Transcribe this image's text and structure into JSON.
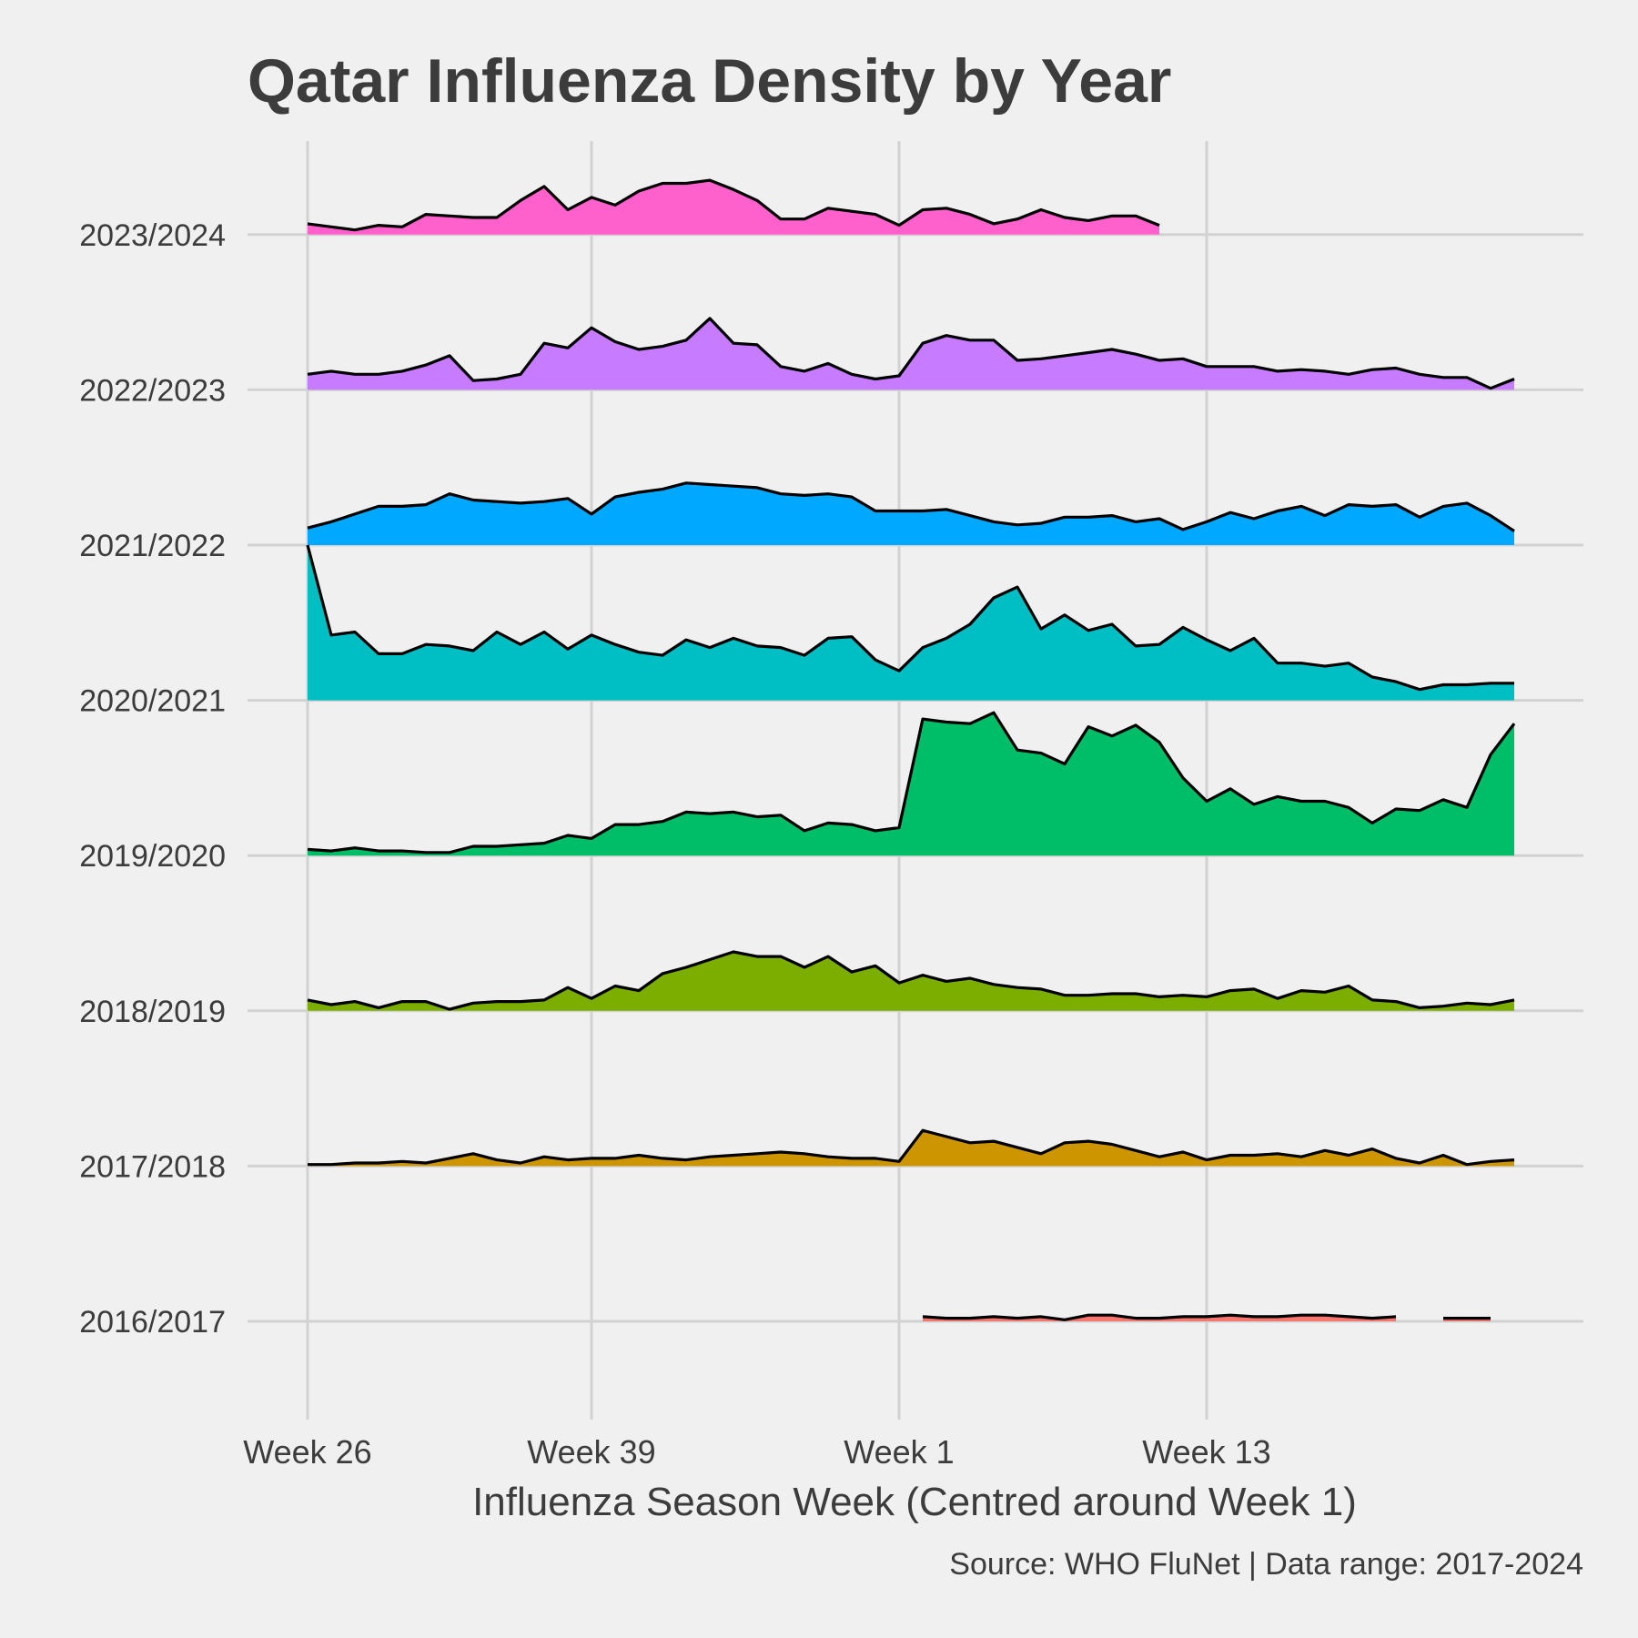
{
  "chart_data": {
    "type": "area",
    "title": "Qatar Influenza Density by Year",
    "xlabel": "Influenza Season Week (Centred around Week 1)",
    "caption": "Source: WHO FluNet | Data range: 2017-2024",
    "x_tick_labels": [
      "Week 26",
      "Week 39",
      "Week 1",
      "Week 13"
    ],
    "x_tick_positions": [
      0,
      12,
      25,
      38
    ],
    "xlim": [
      -2.5,
      53.5
    ],
    "grid": true,
    "legend": "none",
    "series": [
      {
        "name": "2016/2017",
        "color": "#f8766d",
        "start": 26,
        "values": [
          0.03,
          0.02,
          0.02,
          0.03,
          0.02,
          0.03,
          0.01,
          0.04,
          0.04,
          0.02,
          0.02,
          0.03,
          0.03,
          0.04,
          0.03,
          0.03,
          0.04,
          0.04,
          0.03,
          0.02,
          0.03,
          null,
          0.02,
          0.02,
          0.02
        ]
      },
      {
        "name": "2017/2018",
        "color": "#cd9600",
        "start": 0,
        "values": [
          0.01,
          0.01,
          0.02,
          0.02,
          0.03,
          0.02,
          0.05,
          0.08,
          0.04,
          0.02,
          0.06,
          0.04,
          0.05,
          0.05,
          0.07,
          0.05,
          0.04,
          0.06,
          0.07,
          0.08,
          0.09,
          0.08,
          0.06,
          0.05,
          0.05,
          0.03,
          0.23,
          0.19,
          0.15,
          0.16,
          0.12,
          0.08,
          0.15,
          0.16,
          0.14,
          0.1,
          0.06,
          0.09,
          0.04,
          0.07,
          0.07,
          0.08,
          0.06,
          0.1,
          0.07,
          0.11,
          0.05,
          0.02,
          0.07,
          0.01,
          0.03,
          0.04
        ]
      },
      {
        "name": "2018/2019",
        "color": "#7cae00",
        "start": 0,
        "values": [
          0.07,
          0.04,
          0.06,
          0.02,
          0.06,
          0.06,
          0.01,
          0.05,
          0.06,
          0.06,
          0.07,
          0.15,
          0.08,
          0.16,
          0.13,
          0.24,
          0.28,
          0.33,
          0.38,
          0.35,
          0.35,
          0.28,
          0.35,
          0.25,
          0.29,
          0.18,
          0.23,
          0.19,
          0.21,
          0.17,
          0.15,
          0.14,
          0.1,
          0.1,
          0.11,
          0.11,
          0.09,
          0.1,
          0.09,
          0.13,
          0.14,
          0.08,
          0.13,
          0.12,
          0.16,
          0.07,
          0.06,
          0.02,
          0.03,
          0.05,
          0.04,
          0.07
        ]
      },
      {
        "name": "2019/2020",
        "color": "#00be67",
        "start": 0,
        "values": [
          0.04,
          0.03,
          0.05,
          0.03,
          0.03,
          0.02,
          0.02,
          0.06,
          0.06,
          0.07,
          0.08,
          0.13,
          0.11,
          0.2,
          0.2,
          0.22,
          0.28,
          0.27,
          0.28,
          0.25,
          0.26,
          0.16,
          0.21,
          0.2,
          0.16,
          0.18,
          0.88,
          0.86,
          0.85,
          0.92,
          0.68,
          0.66,
          0.59,
          0.83,
          0.77,
          0.84,
          0.73,
          0.5,
          0.35,
          0.43,
          0.33,
          0.38,
          0.35,
          0.35,
          0.31,
          0.21,
          0.3,
          0.29,
          0.36,
          0.31,
          0.65,
          0.85
        ]
      },
      {
        "name": "2020/2021",
        "color": "#00bfc4",
        "start": 0,
        "values": [
          1.0,
          0.42,
          0.44,
          0.3,
          0.3,
          0.36,
          0.35,
          0.32,
          0.44,
          0.36,
          0.44,
          0.33,
          0.42,
          0.36,
          0.31,
          0.29,
          0.39,
          0.34,
          0.4,
          0.35,
          0.34,
          0.29,
          0.4,
          0.41,
          0.26,
          0.19,
          0.34,
          0.4,
          0.49,
          0.66,
          0.73,
          0.46,
          0.55,
          0.45,
          0.49,
          0.35,
          0.36,
          0.47,
          0.39,
          0.32,
          0.4,
          0.24,
          0.24,
          0.22,
          0.24,
          0.15,
          0.12,
          0.07,
          0.1,
          0.1,
          0.11,
          0.11
        ]
      },
      {
        "name": "2021/2022",
        "color": "#00a9ff",
        "start": 0,
        "values": [
          0.11,
          0.15,
          0.2,
          0.25,
          0.25,
          0.26,
          0.33,
          0.29,
          0.28,
          0.27,
          0.28,
          0.3,
          0.2,
          0.31,
          0.34,
          0.36,
          0.4,
          0.39,
          0.38,
          0.37,
          0.33,
          0.32,
          0.33,
          0.31,
          0.22,
          0.22,
          0.22,
          0.23,
          0.19,
          0.15,
          0.13,
          0.14,
          0.18,
          0.18,
          0.19,
          0.15,
          0.17,
          0.1,
          0.15,
          0.21,
          0.17,
          0.22,
          0.25,
          0.19,
          0.26,
          0.25,
          0.26,
          0.18,
          0.25,
          0.27,
          0.19,
          0.09
        ]
      },
      {
        "name": "2022/2023",
        "color": "#c77cff",
        "start": 0,
        "values": [
          0.1,
          0.12,
          0.1,
          0.1,
          0.12,
          0.16,
          0.22,
          0.06,
          0.07,
          0.1,
          0.3,
          0.27,
          0.4,
          0.31,
          0.26,
          0.28,
          0.32,
          0.46,
          0.3,
          0.29,
          0.15,
          0.12,
          0.17,
          0.1,
          0.07,
          0.09,
          0.3,
          0.35,
          0.32,
          0.32,
          0.19,
          0.2,
          0.22,
          0.24,
          0.26,
          0.23,
          0.19,
          0.2,
          0.15,
          0.15,
          0.15,
          0.12,
          0.13,
          0.12,
          0.1,
          0.13,
          0.14,
          0.1,
          0.08,
          0.08,
          0.01,
          0.07
        ]
      },
      {
        "name": "2023/2024",
        "color": "#ff61cc",
        "start": 0,
        "values": [
          0.07,
          0.05,
          0.03,
          0.06,
          0.05,
          0.13,
          0.12,
          0.11,
          0.11,
          0.22,
          0.31,
          0.16,
          0.24,
          0.19,
          0.28,
          0.33,
          0.33,
          0.35,
          0.29,
          0.22,
          0.1,
          0.1,
          0.17,
          0.15,
          0.13,
          0.06,
          0.16,
          0.17,
          0.13,
          0.07,
          0.1,
          0.16,
          0.11,
          0.09,
          0.12,
          0.12,
          0.06
        ]
      }
    ]
  }
}
